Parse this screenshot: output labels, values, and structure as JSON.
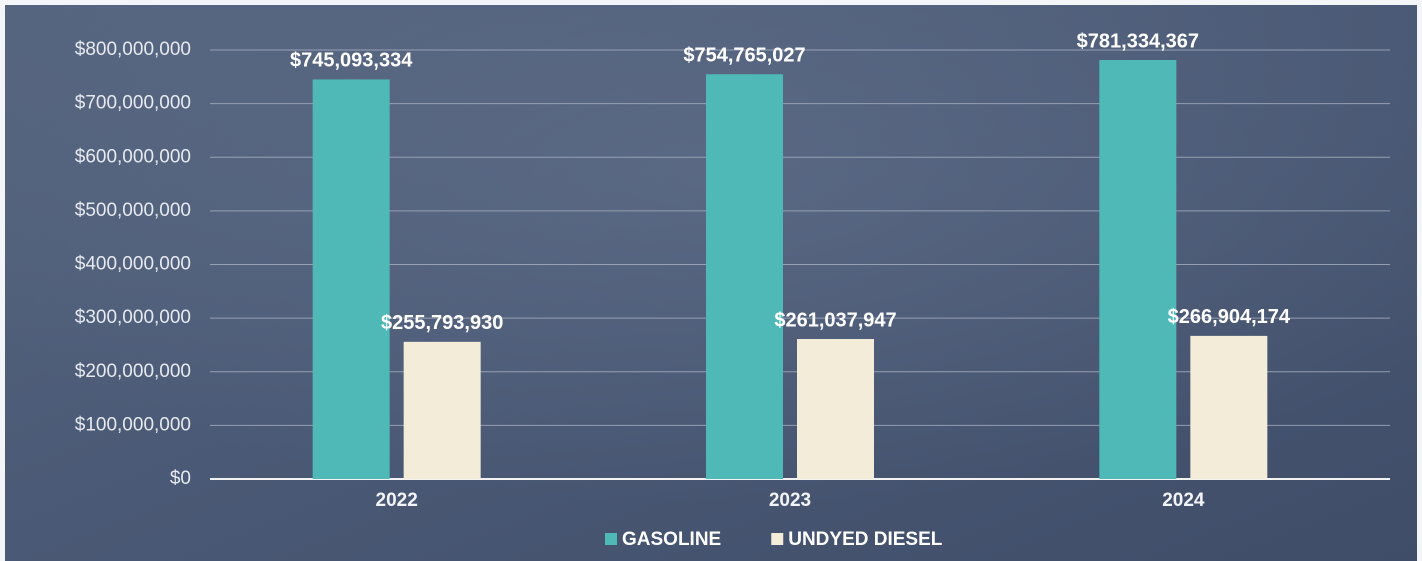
{
  "chart_data": {
    "type": "bar",
    "categories": [
      "2022",
      "2023",
      "2024"
    ],
    "series": [
      {
        "name": "GASOLINE",
        "color": "#4fb9b8",
        "values": [
          745093334,
          754765027,
          781334367
        ],
        "value_labels": [
          "$745,093,334",
          "$754,765,027",
          "$781,334,367"
        ]
      },
      {
        "name": "UNDYED DIESEL",
        "color": "#f3ecd8",
        "values": [
          255793930,
          261037947,
          266904174
        ],
        "value_labels": [
          "$255,793,930",
          "$261,037,947",
          "$266,904,174"
        ]
      }
    ],
    "ylim": [
      0,
      800000000
    ],
    "yticks": [
      {
        "value": 0,
        "label": "$0"
      },
      {
        "value": 100000000,
        "label": "$100,000,000"
      },
      {
        "value": 200000000,
        "label": "$200,000,000"
      },
      {
        "value": 300000000,
        "label": "$300,000,000"
      },
      {
        "value": 400000000,
        "label": "$400,000,000"
      },
      {
        "value": 500000000,
        "label": "$500,000,000"
      },
      {
        "value": 600000000,
        "label": "$600,000,000"
      },
      {
        "value": 700000000,
        "label": "$700,000,000"
      },
      {
        "value": 800000000,
        "label": "$800,000,000"
      }
    ],
    "grid": true,
    "legend": "bottom"
  }
}
